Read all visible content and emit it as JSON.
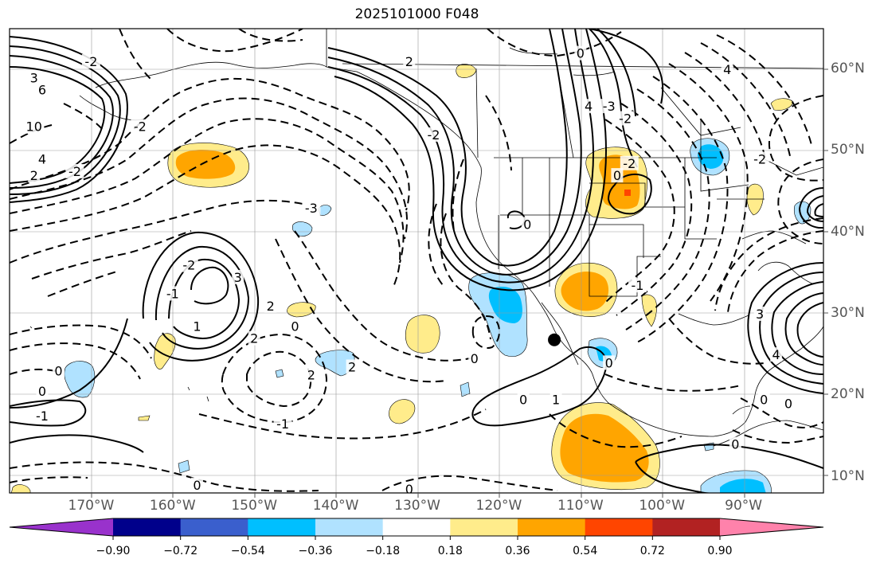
{
  "title": "2025101000 F048",
  "lon_labels": [
    {
      "text": "170°W",
      "lon": -170
    },
    {
      "text": "160°W",
      "lon": -160
    },
    {
      "text": "150°W",
      "lon": -150
    },
    {
      "text": "140°W",
      "lon": -140
    },
    {
      "text": "130°W",
      "lon": -130
    },
    {
      "text": "120°W",
      "lon": -120
    },
    {
      "text": "110°W",
      "lon": -110
    },
    {
      "text": "100°W",
      "lon": -100
    },
    {
      "text": "90°W",
      "lon": -90
    }
  ],
  "lat_labels": [
    {
      "text": "60°N",
      "lat": 60
    },
    {
      "text": "50°N",
      "lat": 50
    },
    {
      "text": "40°N",
      "lat": 40
    },
    {
      "text": "30°N",
      "lat": 30
    },
    {
      "text": "20°N",
      "lat": 20
    },
    {
      "text": "10°N",
      "lat": 10
    }
  ],
  "colorbar": {
    "colors": [
      "#9932cc",
      "#00008b",
      "#3a5fcd",
      "#00bfff",
      "#b0e2ff",
      "#ffffff",
      "#ffec8b",
      "#ffa500",
      "#ff4500",
      "#b22222",
      "#ff82ab"
    ],
    "ticks": [
      "−0.90",
      "−0.72",
      "−0.54",
      "−0.36",
      "−0.18",
      "0.18",
      "0.36",
      "0.54",
      "0.72",
      "0.90"
    ]
  },
  "contour_labels": [
    {
      "text": "3",
      "lon": -177,
      "lat": 59
    },
    {
      "text": "6",
      "lon": -176,
      "lat": 57.5
    },
    {
      "text": "10",
      "lon": -177,
      "lat": 53
    },
    {
      "text": "4",
      "lon": -176,
      "lat": 49
    },
    {
      "text": "2",
      "lon": -177,
      "lat": 47
    },
    {
      "text": "-2",
      "lon": -170,
      "lat": 61
    },
    {
      "text": "-2",
      "lon": -164,
      "lat": 53
    },
    {
      "text": "-2",
      "lon": -172,
      "lat": 47.5
    },
    {
      "text": "-3",
      "lon": -143,
      "lat": 43
    },
    {
      "text": "-2",
      "lon": -128,
      "lat": 52
    },
    {
      "text": "2",
      "lon": -131,
      "lat": 61
    },
    {
      "text": "4",
      "lon": -109,
      "lat": 55.5
    },
    {
      "text": "-3",
      "lon": -106.5,
      "lat": 55.5
    },
    {
      "text": "-2",
      "lon": -104.5,
      "lat": 54
    },
    {
      "text": "4",
      "lon": -92,
      "lat": 60
    },
    {
      "text": "-2",
      "lon": -104,
      "lat": 48.5
    },
    {
      "text": "0",
      "lon": -110,
      "lat": 62
    },
    {
      "text": "0",
      "lon": -105.5,
      "lat": 47
    },
    {
      "text": "0",
      "lon": -116.5,
      "lat": 41
    },
    {
      "text": "-2",
      "lon": -158,
      "lat": 36
    },
    {
      "text": "-1",
      "lon": -160,
      "lat": 32.5
    },
    {
      "text": "3",
      "lon": -152,
      "lat": 34.5
    },
    {
      "text": "2",
      "lon": -148,
      "lat": 31
    },
    {
      "text": "2",
      "lon": -150,
      "lat": 27
    },
    {
      "text": "1",
      "lon": -157,
      "lat": 28.5
    },
    {
      "text": "0",
      "lon": -145,
      "lat": 28.5
    },
    {
      "text": "2",
      "lon": -143,
      "lat": 22.5
    },
    {
      "text": "2",
      "lon": -138,
      "lat": 23.5
    },
    {
      "text": "-1",
      "lon": -146.5,
      "lat": 16.5
    },
    {
      "text": "0",
      "lon": -174,
      "lat": 23
    },
    {
      "text": "0",
      "lon": -176,
      "lat": 20.5
    },
    {
      "text": "-1",
      "lon": -176,
      "lat": 17.5
    },
    {
      "text": "0",
      "lon": -157,
      "lat": 9
    },
    {
      "text": "0",
      "lon": -131,
      "lat": 8.5
    },
    {
      "text": "0",
      "lon": -123,
      "lat": 24.5
    },
    {
      "text": "0",
      "lon": -117,
      "lat": 19.5
    },
    {
      "text": "1",
      "lon": -113,
      "lat": 19.5
    },
    {
      "text": "-1",
      "lon": -103,
      "lat": 33.5
    },
    {
      "text": "0",
      "lon": -106.5,
      "lat": 24
    },
    {
      "text": "3",
      "lon": -88,
      "lat": 30
    },
    {
      "text": "4",
      "lon": -86,
      "lat": 25
    },
    {
      "text": "0",
      "lon": -87.5,
      "lat": 19.5
    },
    {
      "text": "0",
      "lon": -84.5,
      "lat": 19
    },
    {
      "text": "0",
      "lon": -91,
      "lat": 14
    },
    {
      "text": "-2",
      "lon": -88,
      "lat": 49
    }
  ],
  "marker": {
    "lon": -113.2,
    "lat": 26.8
  }
}
